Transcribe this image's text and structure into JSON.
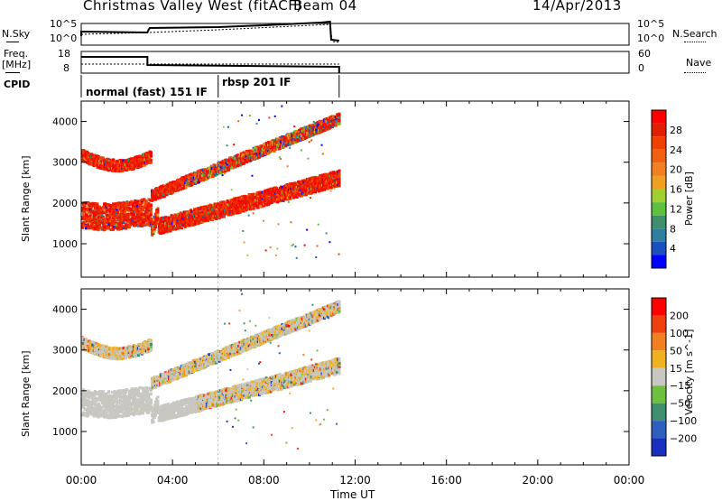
{
  "header": {
    "station": "Christmas Valley West (fitACF)",
    "beam": "Beam 04",
    "date": "14/Apr/2013"
  },
  "top_panels": {
    "nsky_label": "N.Sky",
    "nsearch_label": "N.Search",
    "freq_label_1": "Freq.",
    "freq_label_2": "[MHz]",
    "nave_label": "Nave",
    "cpid_label": "CPID",
    "nsky_ticks_left": [
      "10^5",
      "10^0"
    ],
    "nsky_ticks_right": [
      "10^5",
      "10^0"
    ],
    "freq_ticks_left": [
      "18",
      "8"
    ],
    "nave_ticks_right": [
      "60",
      "0"
    ],
    "cpid_segments": [
      "normal (fast) 151 IF",
      "rbsp 201 IF"
    ]
  },
  "chart_data": [
    {
      "type": "heatmap",
      "title": "",
      "ylabel": "Slant Range [km]",
      "xlabel": "",
      "x_ticks": [
        "00:00",
        "04:00",
        "08:00",
        "12:00",
        "16:00",
        "20:00",
        "00:00"
      ],
      "y_ticks": [
        "1000",
        "2000",
        "3000",
        "4000"
      ],
      "xlim_hours": [
        0,
        24
      ],
      "ylim_km": [
        180,
        4500
      ],
      "colorbar": {
        "label": "Power [dB]",
        "tick_labels": [
          "28",
          "24",
          "20",
          "16",
          "12",
          "8",
          "4"
        ],
        "range": [
          0,
          30
        ],
        "colors": [
          "#0000ff",
          "#1a4fbf",
          "#2f7f9f",
          "#3f8f6f",
          "#5fbf3f",
          "#9fd030",
          "#f0a020",
          "#f08020",
          "#f06010",
          "#f04000",
          "#e02000",
          "#ff0000"
        ]
      }
    },
    {
      "type": "heatmap",
      "title": "",
      "ylabel": "Slant Range [km]",
      "xlabel": "Time UT",
      "x_ticks": [
        "00:00",
        "04:00",
        "08:00",
        "12:00",
        "16:00",
        "20:00",
        "00:00"
      ],
      "y_ticks": [
        "1000",
        "2000",
        "3000",
        "4000"
      ],
      "xlim_hours": [
        0,
        24
      ],
      "ylim_km": [
        180,
        4500
      ],
      "colorbar": {
        "label": "Velocity [m s^-1]",
        "tick_labels": [
          "200",
          "100",
          "50",
          "15",
          "−15",
          "−50",
          "−100",
          "−200"
        ],
        "range": [
          -250,
          250
        ],
        "colors": [
          "#1a2fbf",
          "#2f5fbf",
          "#3f8f6f",
          "#6fbf3f",
          "#c8c8c0",
          "#f0b020",
          "#f08020",
          "#f04010",
          "#ff0000"
        ]
      }
    }
  ],
  "colors": {
    "ground_scatter": "#c8c8c0",
    "frame": "#000000"
  }
}
